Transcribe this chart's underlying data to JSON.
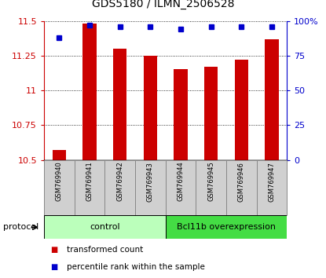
{
  "title": "GDS5180 / ILMN_2506528",
  "samples": [
    "GSM769940",
    "GSM769941",
    "GSM769942",
    "GSM769943",
    "GSM769944",
    "GSM769945",
    "GSM769946",
    "GSM769947"
  ],
  "red_values": [
    10.57,
    11.48,
    11.3,
    11.25,
    11.15,
    11.17,
    11.22,
    11.37
  ],
  "blue_values": [
    88,
    97,
    96,
    96,
    94,
    96,
    96,
    96
  ],
  "ylim_left": [
    10.5,
    11.5
  ],
  "ylim_right": [
    0,
    100
  ],
  "yticks_left": [
    10.5,
    10.75,
    11.0,
    11.25,
    11.5
  ],
  "yticks_right": [
    0,
    25,
    50,
    75,
    100
  ],
  "bar_color": "#cc0000",
  "dot_color": "#0000cc",
  "bar_bottom": 10.5,
  "groups": [
    {
      "label": "control",
      "start": 0,
      "end": 3,
      "color": "#bbffbb"
    },
    {
      "label": "Bcl11b overexpression",
      "start": 4,
      "end": 7,
      "color": "#44dd44"
    }
  ],
  "protocol_label": "protocol",
  "legend_items": [
    {
      "color": "#cc0000",
      "label": "transformed count"
    },
    {
      "color": "#0000cc",
      "label": "percentile rank within the sample"
    }
  ],
  "background_color": "#ffffff",
  "plot_bg": "#ffffff",
  "tick_label_color_left": "#cc0000",
  "tick_label_color_right": "#0000cc",
  "xtick_cell_color": "#d0d0d0",
  "xtick_cell_border": "#888888"
}
